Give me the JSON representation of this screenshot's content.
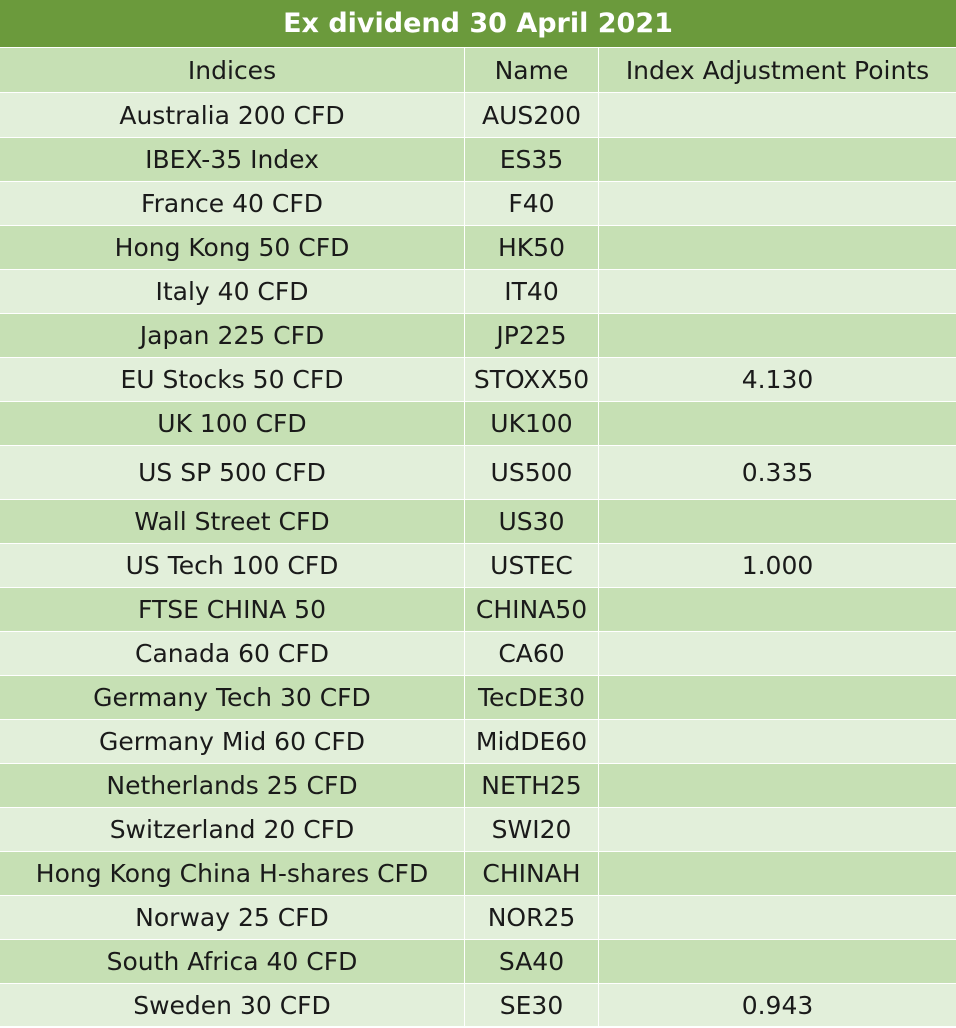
{
  "title": "Ex dividend 30 April 2021",
  "columns": [
    "Indices",
    "Name",
    "Index Adjustment Points"
  ],
  "rows": [
    {
      "index": "Australia 200 CFD",
      "name": "AUS200",
      "points": ""
    },
    {
      "index": "IBEX-35 Index",
      "name": "ES35",
      "points": ""
    },
    {
      "index": "France 40 CFD",
      "name": "F40",
      "points": ""
    },
    {
      "index": "Hong Kong 50 CFD",
      "name": "HK50",
      "points": ""
    },
    {
      "index": "Italy 40 CFD",
      "name": "IT40",
      "points": ""
    },
    {
      "index": "Japan 225 CFD",
      "name": "JP225",
      "points": ""
    },
    {
      "index": "EU Stocks 50 CFD",
      "name": "STOXX50",
      "points": "4.130"
    },
    {
      "index": "UK 100 CFD",
      "name": "UK100",
      "points": ""
    },
    {
      "index": "US SP 500 CFD",
      "name": "US500",
      "points": "0.335"
    },
    {
      "index": "Wall Street CFD",
      "name": "US30",
      "points": ""
    },
    {
      "index": "US Tech 100 CFD",
      "name": "USTEC",
      "points": "1.000"
    },
    {
      "index": "FTSE CHINA 50",
      "name": "CHINA50",
      "points": ""
    },
    {
      "index": "Canada 60 CFD",
      "name": "CA60",
      "points": ""
    },
    {
      "index": "Germany Tech 30 CFD",
      "name": "TecDE30",
      "points": ""
    },
    {
      "index": "Germany Mid 60 CFD",
      "name": "MidDE60",
      "points": ""
    },
    {
      "index": "Netherlands 25 CFD",
      "name": "NETH25",
      "points": ""
    },
    {
      "index": "Switzerland 20 CFD",
      "name": "SWI20",
      "points": ""
    },
    {
      "index": "Hong Kong China H-shares CFD",
      "name": "CHINAH",
      "points": ""
    },
    {
      "index": "Norway 25 CFD",
      "name": "NOR25",
      "points": ""
    },
    {
      "index": "South Africa 40 CFD",
      "name": "SA40",
      "points": ""
    },
    {
      "index": "Sweden 30 CFD",
      "name": "SE30",
      "points": "0.943"
    }
  ],
  "colors": {
    "title_bg": "#6b9a3c",
    "row_dark": "#c6e0b4",
    "row_light": "#e2efda"
  }
}
